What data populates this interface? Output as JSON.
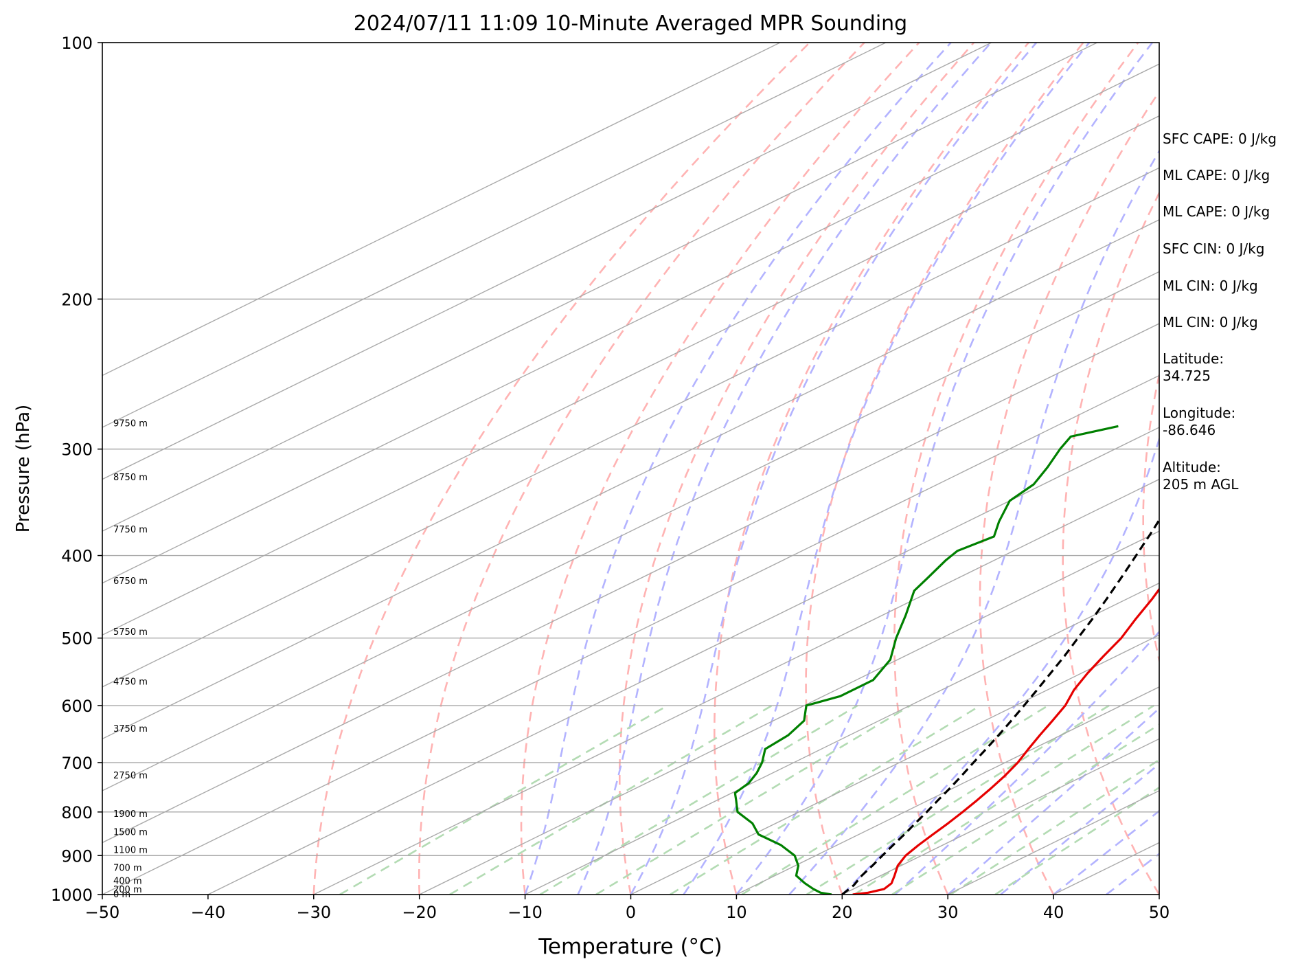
{
  "chart_data": {
    "type": "line",
    "title": "2024/07/11 11:09 10-Minute Averaged MPR Sounding",
    "xlabel": "Temperature (°C)",
    "ylabel": "Pressure (hPa)",
    "xlim": [
      -50,
      50
    ],
    "ylim": [
      1000,
      100
    ],
    "yscale": "log",
    "skew": true,
    "grid": true,
    "x_ticks": [
      "−50",
      "−40",
      "−30",
      "−20",
      "−10",
      "0",
      "10",
      "20",
      "30",
      "40",
      "50"
    ],
    "y_ticks": [
      "100",
      "200",
      "300",
      "400",
      "500",
      "600",
      "700",
      "800",
      "900",
      "1000"
    ],
    "height_labels": [
      {
        "p": 1000,
        "label": "0 m"
      },
      {
        "p": 987,
        "label": "200 m"
      },
      {
        "p": 964,
        "label": "400 m"
      },
      {
        "p": 931,
        "label": "700 m"
      },
      {
        "p": 887,
        "label": "1100 m"
      },
      {
        "p": 845,
        "label": "1500 m"
      },
      {
        "p": 805,
        "label": "1900 m"
      },
      {
        "p": 725,
        "label": "2750 m"
      },
      {
        "p": 639,
        "label": "3750 m"
      },
      {
        "p": 563,
        "label": "4750 m"
      },
      {
        "p": 492,
        "label": "5750 m"
      },
      {
        "p": 429,
        "label": "6750 m"
      },
      {
        "p": 373,
        "label": "7750 m"
      },
      {
        "p": 324,
        "label": "8750 m"
      },
      {
        "p": 280,
        "label": "9750 m"
      }
    ],
    "series": [
      {
        "color": "#e60000",
        "style": "solid",
        "points": [
          [
            1000,
            21.0
          ],
          [
            995,
            22.1
          ],
          [
            985,
            22.9
          ],
          [
            970,
            22.5
          ],
          [
            950,
            21.3
          ],
          [
            925,
            19.7
          ],
          [
            900,
            18.5
          ],
          [
            875,
            17.7
          ],
          [
            850,
            17.0
          ],
          [
            825,
            16.3
          ],
          [
            800,
            15.5
          ],
          [
            775,
            14.6
          ],
          [
            750,
            13.6
          ],
          [
            725,
            12.5
          ],
          [
            700,
            11.2
          ],
          [
            675,
            9.6
          ],
          [
            650,
            8.0
          ],
          [
            625,
            6.4
          ],
          [
            600,
            4.7
          ],
          [
            575,
            2.5
          ],
          [
            550,
            0.6
          ],
          [
            525,
            -1.2
          ],
          [
            500,
            -3.0
          ],
          [
            475,
            -5.3
          ],
          [
            450,
            -7.6
          ],
          [
            425,
            -10.2
          ],
          [
            400,
            -12.7
          ],
          [
            375,
            -15.6
          ],
          [
            350,
            -18.4
          ],
          [
            325,
            -21.8
          ],
          [
            300,
            -24.9
          ],
          [
            290,
            -26.5
          ],
          [
            280,
            -27.5
          ]
        ]
      },
      {
        "color": "#008000",
        "style": "solid",
        "points": [
          [
            1000,
            19.0
          ],
          [
            995,
            17.6
          ],
          [
            985,
            16.2
          ],
          [
            970,
            14.3
          ],
          [
            950,
            12.0
          ],
          [
            925,
            10.3
          ],
          [
            900,
            8.0
          ],
          [
            875,
            4.7
          ],
          [
            850,
            0.5
          ],
          [
            825,
            -2.2
          ],
          [
            800,
            -5.8
          ],
          [
            775,
            -8.2
          ],
          [
            760,
            -9.7
          ],
          [
            740,
            -10.3
          ],
          [
            720,
            -11.5
          ],
          [
            700,
            -13.0
          ],
          [
            675,
            -15.3
          ],
          [
            650,
            -15.8
          ],
          [
            625,
            -17.1
          ],
          [
            600,
            -19.8
          ],
          [
            585,
            -18.4
          ],
          [
            560,
            -18.4
          ],
          [
            530,
            -20.7
          ],
          [
            500,
            -24.3
          ],
          [
            470,
            -27.8
          ],
          [
            440,
            -31.7
          ],
          [
            425,
            -32.9
          ],
          [
            405,
            -34.6
          ],
          [
            395,
            -35.3
          ],
          [
            380,
            -34.6
          ],
          [
            365,
            -37.0
          ],
          [
            345,
            -40.0
          ],
          [
            330,
            -40.9
          ],
          [
            315,
            -42.9
          ],
          [
            300,
            -45.2
          ],
          [
            290,
            -46.6
          ],
          [
            282,
            -44.1
          ]
        ]
      },
      {
        "color": "#000000",
        "style": "dashed",
        "points": [
          [
            1000,
            20.0
          ],
          [
            975,
            19.3
          ],
          [
            950,
            18.2
          ],
          [
            925,
            17.3
          ],
          [
            900,
            16.3
          ],
          [
            875,
            15.3
          ],
          [
            850,
            14.3
          ],
          [
            825,
            13.2
          ],
          [
            800,
            12.1
          ],
          [
            775,
            10.9
          ],
          [
            750,
            9.7
          ],
          [
            725,
            8.4
          ],
          [
            700,
            7.0
          ],
          [
            675,
            5.6
          ],
          [
            650,
            4.1
          ],
          [
            625,
            2.5
          ],
          [
            600,
            0.8
          ],
          [
            575,
            -1.0
          ],
          [
            550,
            -2.9
          ],
          [
            525,
            -4.9
          ],
          [
            500,
            -7.1
          ],
          [
            475,
            -9.4
          ],
          [
            450,
            -11.9
          ],
          [
            425,
            -14.6
          ],
          [
            400,
            -17.5
          ],
          [
            375,
            -20.6
          ],
          [
            350,
            -24.0
          ],
          [
            325,
            -27.7
          ],
          [
            300,
            -31.8
          ],
          [
            290,
            -33.3
          ],
          [
            280,
            -35.0
          ]
        ]
      }
    ],
    "background_lines": {
      "isotherm_color": "#aaaaaa",
      "dry_adiabat_color": "#ffb3b3",
      "moist_adiabat_color": "#b3b3ff",
      "mixing_ratio_color": "#b3dbb3"
    }
  },
  "sidebar": [
    {
      "text": "SFC CAPE: 0 J/kg"
    },
    {
      "text": "ML CAPE: 0 J/kg"
    },
    {
      "text": "ML CAPE: 0 J/kg"
    },
    {
      "text": "SFC CIN: 0 J/kg"
    },
    {
      "text": "ML CIN: 0 J/kg"
    },
    {
      "text": "ML CIN: 0 J/kg"
    },
    {
      "text": "Latitude:",
      "value": "34.725"
    },
    {
      "text": "Longitude:",
      "value": "-86.646"
    },
    {
      "text": "Altitude:",
      "value": "205 m AGL"
    }
  ]
}
